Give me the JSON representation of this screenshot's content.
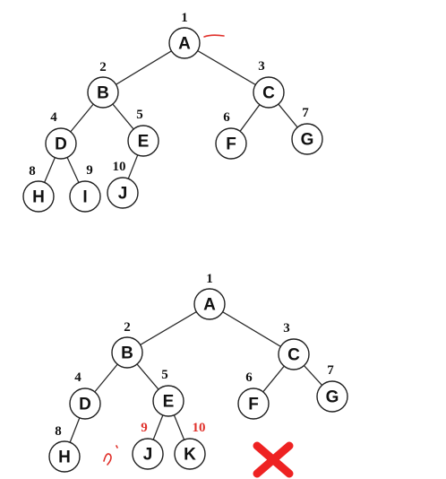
{
  "tree_top": {
    "nodes": [
      {
        "id": "A",
        "label": "A",
        "index": "1",
        "parent": null
      },
      {
        "id": "B",
        "label": "B",
        "index": "2",
        "parent": "A"
      },
      {
        "id": "C",
        "label": "C",
        "index": "3",
        "parent": "A"
      },
      {
        "id": "D",
        "label": "D",
        "index": "4",
        "parent": "B"
      },
      {
        "id": "E",
        "label": "E",
        "index": "5",
        "parent": "B"
      },
      {
        "id": "F",
        "label": "F",
        "index": "6",
        "parent": "C"
      },
      {
        "id": "G",
        "label": "G",
        "index": "7",
        "parent": "C"
      },
      {
        "id": "H",
        "label": "H",
        "index": "8",
        "parent": "D"
      },
      {
        "id": "I",
        "label": "I",
        "index": "9",
        "parent": "D"
      },
      {
        "id": "J",
        "label": "J",
        "index": "10",
        "parent": "E"
      }
    ]
  },
  "tree_bottom": {
    "nodes": [
      {
        "id": "A",
        "label": "A",
        "index": "1",
        "parent": null
      },
      {
        "id": "B",
        "label": "B",
        "index": "2",
        "parent": "A"
      },
      {
        "id": "C",
        "label": "C",
        "index": "3",
        "parent": "A"
      },
      {
        "id": "D",
        "label": "D",
        "index": "4",
        "parent": "B"
      },
      {
        "id": "E",
        "label": "E",
        "index": "5",
        "parent": "B"
      },
      {
        "id": "F",
        "label": "F",
        "index": "6",
        "parent": "C"
      },
      {
        "id": "G",
        "label": "G",
        "index": "7",
        "parent": "C"
      },
      {
        "id": "H",
        "label": "H",
        "index": "8",
        "parent": "D"
      },
      {
        "id": "J",
        "label": "J",
        "index": "9",
        "parent": "E",
        "highlight": true
      },
      {
        "id": "K",
        "label": "K",
        "index": "10",
        "parent": "E",
        "highlight": true
      }
    ]
  },
  "colors": {
    "highlight_index": "#e0302a",
    "cross": "#ee2222"
  },
  "icons": {
    "invalid_marker": "red-cross-icon"
  }
}
